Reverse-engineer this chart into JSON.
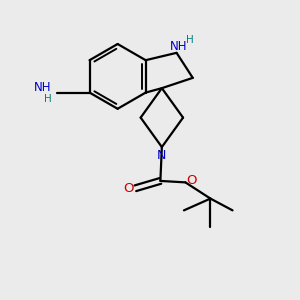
{
  "background_color": "#ebebeb",
  "bond_color": "#000000",
  "N_color": "#0000cc",
  "O_color": "#cc0000",
  "H_color": "#008080",
  "figsize": [
    3.0,
    3.0
  ],
  "dpi": 100,
  "xlim": [
    0,
    10
  ],
  "ylim": [
    0,
    10
  ],
  "lw": 1.6,
  "lw_double_inner": 1.4,
  "font_size_atom": 8.5,
  "font_size_H": 7.5
}
